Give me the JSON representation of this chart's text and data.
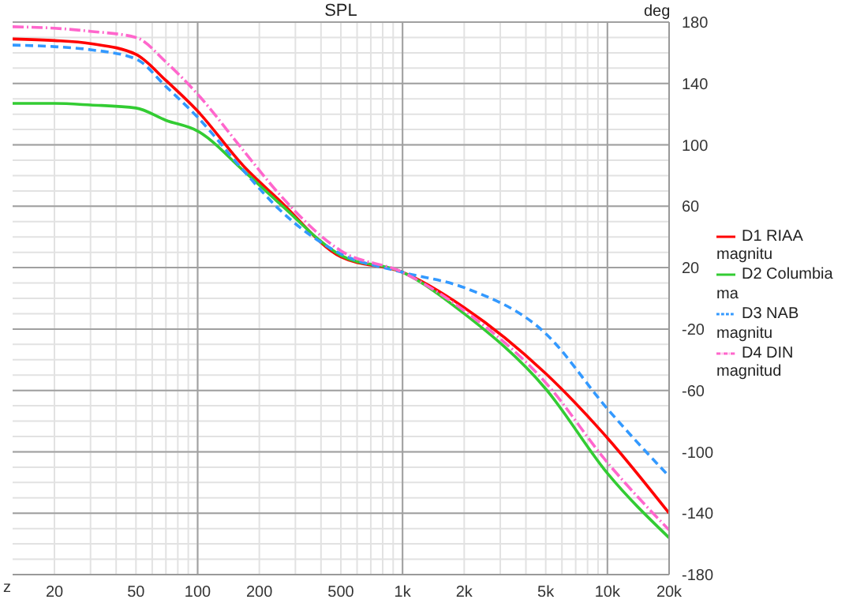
{
  "chart_data": {
    "type": "line",
    "title": "SPL",
    "xlabel": "z",
    "ylabel": "deg",
    "x": [
      12.5,
      20,
      30,
      50,
      70,
      100,
      168,
      250,
      500,
      1000,
      2000,
      5000,
      10000,
      20000
    ],
    "series": [
      {
        "name": "D1 RIAA magnitu",
        "color": "#ff0000",
        "line_style": "solid",
        "values": [
          169,
          168,
          166,
          159,
          142,
          122,
          86,
          64,
          27,
          17,
          -6,
          -49,
          -91,
          -140
        ]
      },
      {
        "name": "D2 Columbia ma",
        "color": "#33cc33",
        "line_style": "solid",
        "values": [
          127,
          127,
          126,
          124,
          116,
          109,
          83,
          62,
          28,
          17,
          -10,
          -59,
          -114,
          -156
        ]
      },
      {
        "name": "D3 NAB magnitu",
        "color": "#3399ff",
        "line_style": "dashed",
        "values": [
          165,
          164,
          162,
          156,
          138,
          118,
          83,
          58,
          29,
          17,
          7,
          -23,
          -72,
          -116
        ]
      },
      {
        "name": "D4 DIN magnitud",
        "color": "#ff66cc",
        "line_style": "dashdot",
        "values": [
          177,
          176,
          174,
          170,
          154,
          133,
          96,
          68,
          31,
          17,
          -8,
          -55,
          -107,
          -151
        ]
      }
    ],
    "log": "x",
    "xlim": [
      12.5,
      20000
    ],
    "xticks": [
      20,
      {
        "value": 30,
        "label": null
      },
      {
        "value": 40,
        "label": null
      },
      50,
      {
        "value": 60,
        "label": null
      },
      {
        "value": 70,
        "label": null
      },
      {
        "value": 80,
        "label": null
      },
      {
        "value": 90,
        "label": null
      },
      100,
      200,
      {
        "value": 300,
        "label": null
      },
      {
        "value": 400,
        "label": null
      },
      500,
      {
        "value": 600,
        "label": null
      },
      {
        "value": 700,
        "label": null
      },
      {
        "value": 800,
        "label": null
      },
      {
        "value": 900,
        "label": null
      },
      {
        "value": 1000,
        "label": "1k"
      },
      {
        "value": 2000,
        "label": "2k"
      },
      {
        "value": 3000,
        "label": null
      },
      {
        "value": 4000,
        "label": null
      },
      {
        "value": 5000,
        "label": "5k"
      },
      {
        "value": 6000,
        "label": null
      },
      {
        "value": 7000,
        "label": null
      },
      {
        "value": 8000,
        "label": null
      },
      {
        "value": 9000,
        "label": null
      },
      {
        "value": 10000,
        "label": "10k"
      },
      {
        "value": 20000,
        "label": "20k"
      }
    ],
    "ylim": [
      -180,
      180
    ],
    "yticks": [
      180,
      {
        "value": 170,
        "label": null
      },
      {
        "value": 160,
        "label": null
      },
      {
        "value": 150,
        "label": null
      },
      140,
      {
        "value": 130,
        "label": null
      },
      {
        "value": 120,
        "label": null
      },
      {
        "value": 110,
        "label": null
      },
      100,
      {
        "value": 90,
        "label": null
      },
      {
        "value": 80,
        "label": null
      },
      {
        "value": 70,
        "label": null
      },
      60,
      {
        "value": 50,
        "label": null
      },
      {
        "value": 40,
        "label": null
      },
      {
        "value": 30,
        "label": null
      },
      20,
      {
        "value": 10,
        "label": null
      },
      {
        "value": 0,
        "label": null
      },
      {
        "value": -10,
        "label": null
      },
      -20,
      {
        "value": -30,
        "label": null
      },
      {
        "value": -40,
        "label": null
      },
      {
        "value": -50,
        "label": null
      },
      -60,
      {
        "value": -70,
        "label": null
      },
      {
        "value": -80,
        "label": null
      },
      {
        "value": -90,
        "label": null
      },
      -100,
      {
        "value": -110,
        "label": null
      },
      {
        "value": -120,
        "label": null
      },
      {
        "value": -130,
        "label": null
      },
      -140,
      {
        "value": -150,
        "label": null
      },
      {
        "value": -160,
        "label": null
      },
      {
        "value": -170,
        "label": null
      },
      -180
    ],
    "grid": true,
    "legend": "right",
    "marker": "none"
  }
}
